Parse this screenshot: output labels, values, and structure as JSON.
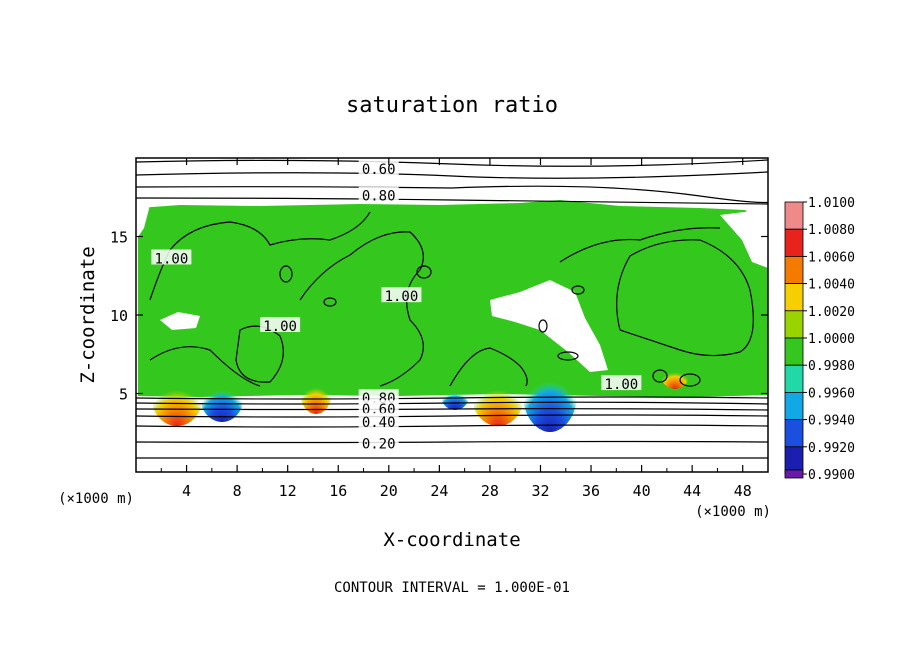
{
  "chart_data": {
    "type": "heatmap",
    "title": "saturation ratio",
    "xlabel": "X-coordinate",
    "ylabel": "Z-coordinate",
    "x_unit": "(×1000 m)",
    "y_unit": "(×1000 m)",
    "xlim": [
      0,
      50
    ],
    "ylim": [
      0,
      20
    ],
    "x_ticks": [
      4,
      8,
      12,
      16,
      20,
      24,
      28,
      32,
      36,
      40,
      44,
      48
    ],
    "y_ticks": [
      5,
      10,
      15
    ],
    "footer": "CONTOUR INTERVAL = 1.000E-01",
    "colorbar": {
      "labels": [
        "1.0100",
        "1.0080",
        "1.0060",
        "1.0040",
        "1.0020",
        "1.0000",
        "0.9980",
        "0.9960",
        "0.9940",
        "0.9920",
        "0.9900"
      ],
      "colors": [
        "#f08a8a",
        "#e8231c",
        "#f57a00",
        "#f5cf00",
        "#9ad400",
        "#34c81e",
        "#22d8a6",
        "#12a8e6",
        "#1a4fe0",
        "#1a1fb0",
        "#6a1aa8"
      ]
    },
    "contour_labels": [
      {
        "text": "0.60",
        "x": 19.2,
        "y": 19.3
      },
      {
        "text": "0.80",
        "x": 19.2,
        "y": 17.6
      },
      {
        "text": "1.00",
        "x": 2.8,
        "y": 13.6
      },
      {
        "text": "1.00",
        "x": 21.0,
        "y": 11.2
      },
      {
        "text": "1.00",
        "x": 11.4,
        "y": 9.3
      },
      {
        "text": "1.00",
        "x": 38.4,
        "y": 5.6
      },
      {
        "text": "0.80",
        "x": 19.2,
        "y": 4.7
      },
      {
        "text": "0.60",
        "x": 19.2,
        "y": 4.0
      },
      {
        "text": "0.40",
        "x": 19.2,
        "y": 3.2
      },
      {
        "text": "0.20",
        "x": 19.2,
        "y": 1.8
      }
    ]
  }
}
